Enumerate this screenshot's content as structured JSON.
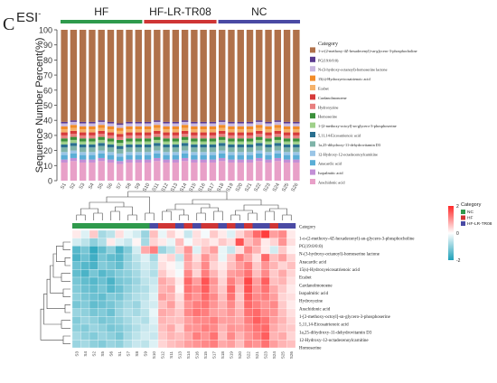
{
  "panel": {
    "letter": "C",
    "mode": "ESI",
    "mode_sup": "-"
  },
  "chart_data": [
    {
      "type": "bar",
      "stacked": true,
      "ylabel": "Sequence Number Percent(%)",
      "ylim": [
        0,
        100
      ],
      "yticks": [
        0,
        10,
        20,
        30,
        40,
        50,
        60,
        70,
        80,
        90,
        100
      ],
      "groups": [
        {
          "name": "HF",
          "color": "#2f9a4c",
          "count": 9
        },
        {
          "name": "HF-LR-TR08",
          "color": "#cf3535",
          "count": 8
        },
        {
          "name": "NC",
          "color": "#4a4aa4",
          "count": 9
        }
      ],
      "categories": [
        "S1",
        "S2",
        "S3",
        "S4",
        "S5",
        "S6",
        "S7",
        "S8",
        "S9",
        "S10",
        "S11",
        "S12",
        "S13",
        "S14",
        "S15",
        "S16",
        "S17",
        "S18",
        "S19",
        "S20",
        "S21",
        "S22",
        "S23",
        "S24",
        "S25",
        "S26"
      ],
      "legend_title": "Category",
      "series": [
        {
          "name": "Arachidonic acid",
          "color": "#e8a0c8",
          "values": [
            12,
            13,
            12,
            12,
            13,
            12,
            11,
            12,
            12,
            12,
            13,
            12,
            12,
            13,
            12,
            12,
            12,
            13,
            12,
            12,
            12,
            13,
            12,
            13,
            12,
            12
          ]
        },
        {
          "name": "Isopalmitic acid",
          "color": "#c38fd6",
          "values": [
            2,
            2,
            2,
            2,
            2,
            2,
            2,
            2,
            2,
            2,
            2,
            2,
            2,
            2,
            2,
            2,
            2,
            2,
            2,
            2,
            2,
            2,
            2,
            2,
            2,
            2
          ]
        },
        {
          "name": "Anacardic acid",
          "color": "#5aaed6",
          "values": [
            3,
            3,
            3,
            3,
            3,
            3,
            3,
            3,
            3,
            3,
            3,
            3,
            3,
            3,
            3,
            3,
            3,
            3,
            3,
            3,
            3,
            3,
            3,
            3,
            3,
            3
          ]
        },
        {
          "name": "12-Hydroxy-12-octadecenoylcarnitine",
          "color": "#9ac5e6",
          "values": [
            2,
            2,
            2,
            2,
            2,
            2,
            2,
            2,
            2,
            2,
            2,
            2,
            2,
            2,
            2,
            2,
            2,
            2,
            2,
            2,
            2,
            2,
            2,
            2,
            2,
            2
          ]
        },
        {
          "name": "1a,25-dihydroxy-11-dehydrovitamin D3",
          "color": "#7fb3a8",
          "values": [
            3,
            3,
            3,
            3,
            3,
            3,
            3,
            3,
            3,
            3,
            3,
            3,
            3,
            3,
            3,
            3,
            3,
            3,
            3,
            3,
            3,
            3,
            3,
            3,
            3,
            3
          ]
        },
        {
          "name": "5,11,14-Eicosatrienoic acid",
          "color": "#2a6f8f",
          "values": [
            2,
            2,
            2,
            2,
            2,
            2,
            2,
            2,
            2,
            2,
            2,
            2,
            2,
            2,
            2,
            2,
            2,
            2,
            2,
            2,
            2,
            2,
            2,
            2,
            2,
            2
          ]
        },
        {
          "name": "1-[2-methoxy-octoyl]-sn-glycero-3-phosphoserine",
          "color": "#9fd08a",
          "values": [
            2,
            2,
            2,
            2,
            2,
            2,
            2,
            2,
            2,
            2,
            2,
            2,
            2,
            2,
            2,
            2,
            2,
            2,
            2,
            2,
            2,
            2,
            2,
            2,
            2,
            2
          ]
        },
        {
          "name": "Homoserine",
          "color": "#3a8f3a",
          "values": [
            2,
            2,
            2,
            2,
            2,
            2,
            2,
            2,
            2,
            2,
            2,
            2,
            2,
            2,
            2,
            2,
            2,
            2,
            2,
            2,
            2,
            2,
            2,
            2,
            2,
            2
          ]
        },
        {
          "name": "Hydroxyzine",
          "color": "#e87f7f",
          "values": [
            2,
            2,
            2,
            2,
            2,
            2,
            2,
            2,
            2,
            2,
            2,
            2,
            2,
            2,
            2,
            2,
            2,
            2,
            2,
            2,
            2,
            2,
            2,
            2,
            2,
            2
          ]
        },
        {
          "name": "Cardanolmonoene",
          "color": "#d63a3a",
          "values": [
            2,
            2,
            2,
            2,
            2,
            2,
            2,
            2,
            2,
            2,
            2,
            2,
            2,
            2,
            2,
            2,
            2,
            2,
            2,
            2,
            2,
            2,
            2,
            2,
            2,
            2
          ]
        },
        {
          "name": "Ecabet",
          "color": "#f5b26b",
          "values": [
            2,
            2,
            2,
            2,
            2,
            2,
            2,
            2,
            2,
            2,
            2,
            2,
            2,
            2,
            2,
            2,
            2,
            2,
            2,
            2,
            2,
            2,
            2,
            2,
            2,
            2
          ]
        },
        {
          "name": "15(s)-Hydroxyeicosatrienoic acid",
          "color": "#f28c28",
          "values": [
            2,
            2,
            2,
            2,
            2,
            2,
            2,
            2,
            2,
            2,
            2,
            2,
            2,
            2,
            2,
            2,
            2,
            2,
            2,
            2,
            2,
            2,
            2,
            2,
            2,
            2
          ]
        },
        {
          "name": "N-(3-hydroxy-octanoyl)-homoserine lactone",
          "color": "#c9b8e0",
          "values": [
            2,
            2,
            2,
            2,
            2,
            2,
            2,
            2,
            2,
            2,
            2,
            2,
            2,
            2,
            2,
            2,
            2,
            2,
            2,
            2,
            2,
            2,
            2,
            2,
            2,
            2
          ]
        },
        {
          "name": "PC(19:0/0:0)",
          "color": "#5a3a8f",
          "values": [
            1,
            1,
            1,
            1,
            1,
            1,
            1,
            1,
            1,
            1,
            1,
            1,
            1,
            1,
            1,
            1,
            1,
            1,
            1,
            1,
            1,
            1,
            1,
            1,
            1,
            1
          ]
        },
        {
          "name": "1-o-(2-methoxy-4Z-hexadecenyl)-sn-glycero-3-phosphocholine",
          "color": "#b0714a",
          "values": [
            61,
            60,
            61,
            61,
            60,
            61,
            62,
            61,
            61,
            61,
            60,
            61,
            61,
            60,
            61,
            61,
            61,
            60,
            61,
            61,
            61,
            60,
            61,
            60,
            61,
            61
          ]
        }
      ]
    },
    {
      "type": "heatmap",
      "row_labels": [
        "Category",
        "1-o-(2-methoxy-4Z-hexadecenyl)-sn-glycero-3-phosphocholine",
        "PC(19:0/0:0)",
        "N-(3-hydroxy-octanoyl)-homoserine lactone",
        "Anacardic acid",
        "15(s)-Hydroxyeicosatrienoic acid",
        "Ecabet",
        "Cardanolmonoene",
        "Isopalmitic acid",
        "Hydroxyzine",
        "Arachidonic acid",
        "1-[2-methoxy-octoyl]-sn-glycero-3-phosphoserine",
        "5,11,14-Eicosatrienoic acid",
        "1a,25-dihydroxy-11-dehydrovitamin D3",
        "12-Hydroxy-12-octadecenoylcarnitine",
        "Homoserine"
      ],
      "column_labels": [
        "S3",
        "S4",
        "S2",
        "S5",
        "S6",
        "S1",
        "S7",
        "S8",
        "S9",
        "S10",
        "S12",
        "S11",
        "S13",
        "S14",
        "S16",
        "S15",
        "S17",
        "S18",
        "S19",
        "S20",
        "S22",
        "S21",
        "S23",
        "S24",
        "S25",
        "S26"
      ],
      "column_groups": [
        "HF",
        "HF",
        "HF",
        "HF",
        "HF",
        "HF",
        "HF",
        "HF",
        "HF",
        "NC",
        "HF-LR-TR08",
        "HF-LR-TR08",
        "NC",
        "HF-LR-TR08",
        "NC",
        "HF-LR-TR08",
        "HF-LR-TR08",
        "NC",
        "HF-LR-TR08",
        "NC",
        "HF-LR-TR08",
        "NC",
        "NC",
        "HF-LR-TR08",
        "NC",
        "NC"
      ],
      "legend": {
        "scale_title": "",
        "scale_ticks": [
          "2",
          "0",
          "-2"
        ],
        "category_title": "Category",
        "category_items": [
          {
            "name": "NC",
            "color": "#2f9a4c"
          },
          {
            "name": "HF",
            "color": "#cf3535"
          },
          {
            "name": "HF-LR-TR08",
            "color": "#4a4aa4"
          }
        ]
      },
      "values": [
        [
          0.2,
          -0.3,
          0.5,
          -0.8,
          -0.6,
          0.3,
          -0.2,
          -0.4,
          -0.9,
          0.6,
          -0.2,
          0.4,
          0.1,
          -0.5,
          0.3,
          -0.1,
          0.5,
          0.2,
          -0.3,
          0.4,
          0.8,
          1.4,
          1.8,
          0.9,
          1.1,
          0.2
        ],
        [
          -0.4,
          -0.6,
          -1.0,
          -0.7,
          0.2,
          -0.3,
          -0.5,
          0.1,
          -0.8,
          0.4,
          0.2,
          -0.2,
          0.6,
          -0.1,
          0.3,
          0.4,
          0.2,
          0.5,
          0.3,
          1.6,
          0.6,
          0.9,
          0.2,
          0.4,
          1.0,
          0.3
        ],
        [
          -1.5,
          -1.2,
          -1.8,
          -1.4,
          -1.0,
          -1.6,
          -1.1,
          -0.4,
          0.8,
          1.2,
          -0.9,
          -0.6,
          0.4,
          1.0,
          -0.3,
          0.6,
          0.9,
          -0.2,
          -0.5,
          0.3,
          1.1,
          0.7,
          0.2,
          -0.4,
          0.5,
          0.1
        ],
        [
          -1.6,
          -1.3,
          -1.7,
          -1.2,
          -1.4,
          -1.5,
          -1.0,
          -0.6,
          -0.3,
          -0.8,
          0.2,
          0.4,
          -0.5,
          0.9,
          0.3,
          1.0,
          0.6,
          -0.2,
          0.5,
          1.2,
          0.8,
          0.3,
          1.4,
          0.6,
          0.9,
          0.4
        ],
        [
          -1.3,
          -1.5,
          -1.6,
          -1.1,
          -1.2,
          -1.4,
          -0.9,
          -0.7,
          -0.4,
          -0.6,
          0.3,
          0.1,
          -0.2,
          0.8,
          0.5,
          1.1,
          0.4,
          0.2,
          0.6,
          0.9,
          1.2,
          0.5,
          1.0,
          0.7,
          0.4,
          0.6
        ],
        [
          -1.4,
          -1.6,
          -1.2,
          -1.5,
          -1.3,
          -1.1,
          -1.0,
          -0.8,
          -0.5,
          -0.7,
          0.5,
          0.2,
          -0.1,
          1.1,
          0.4,
          1.2,
          0.7,
          0.3,
          0.9,
          1.0,
          1.3,
          0.6,
          1.1,
          0.5,
          0.8,
          0.4
        ],
        [
          -1.2,
          -1.4,
          -1.5,
          -1.3,
          -1.6,
          -1.2,
          -1.1,
          -0.9,
          -0.6,
          -0.5,
          0.8,
          0.6,
          0.2,
          1.4,
          0.9,
          1.6,
          1.0,
          0.4,
          1.2,
          0.8,
          1.7,
          0.9,
          1.5,
          0.6,
          0.7,
          0.3
        ],
        [
          -1.1,
          -1.3,
          -1.4,
          -1.2,
          -1.5,
          -1.3,
          -1.0,
          -0.8,
          -0.7,
          -0.4,
          0.7,
          0.8,
          0.1,
          1.3,
          1.1,
          1.5,
          0.9,
          0.5,
          1.4,
          0.6,
          1.6,
          1.0,
          1.3,
          0.8,
          0.5,
          0.2
        ],
        [
          -1.0,
          -1.2,
          -1.3,
          -1.4,
          -1.1,
          -1.2,
          -0.9,
          -0.7,
          -0.6,
          -0.3,
          0.9,
          0.7,
          0.3,
          1.2,
          1.0,
          1.4,
          1.1,
          0.6,
          1.3,
          0.5,
          1.5,
          1.1,
          1.2,
          0.9,
          0.4,
          0.3
        ],
        [
          -1.2,
          -1.1,
          -1.4,
          -1.3,
          -1.2,
          -1.0,
          -0.8,
          -0.9,
          -0.5,
          -0.4,
          0.6,
          0.9,
          0.4,
          1.0,
          1.2,
          1.3,
          1.0,
          0.7,
          1.1,
          0.6,
          1.4,
          1.2,
          1.0,
          1.1,
          0.5,
          0.2
        ],
        [
          -0.9,
          -1.0,
          -1.2,
          -1.1,
          -1.3,
          -0.9,
          -0.7,
          -0.8,
          -0.6,
          -0.2,
          0.8,
          0.7,
          0.5,
          1.1,
          1.3,
          1.2,
          0.9,
          0.8,
          1.0,
          0.7,
          1.3,
          1.4,
          1.1,
          1.0,
          0.6,
          0.3
        ],
        [
          -1.1,
          -0.9,
          -1.0,
          -1.2,
          -1.1,
          -1.0,
          -0.8,
          -0.6,
          -0.7,
          -0.3,
          0.7,
          0.6,
          0.6,
          0.9,
          1.1,
          1.1,
          1.2,
          0.9,
          0.9,
          0.8,
          1.2,
          1.5,
          1.3,
          0.9,
          0.7,
          0.4
        ],
        [
          -1.0,
          -1.1,
          -0.9,
          -1.0,
          -1.2,
          -1.1,
          -0.9,
          -0.7,
          -0.5,
          -0.4,
          0.6,
          0.8,
          0.4,
          1.0,
          1.0,
          1.2,
          1.1,
          0.7,
          1.0,
          0.9,
          1.1,
          1.3,
          1.4,
          0.8,
          0.6,
          0.5
        ],
        [
          -0.8,
          -1.0,
          -1.1,
          -0.9,
          -1.0,
          -1.2,
          -0.8,
          -0.6,
          -0.4,
          -0.5,
          0.5,
          0.7,
          0.6,
          0.8,
          1.2,
          1.0,
          1.3,
          0.6,
          1.1,
          0.7,
          1.0,
          1.2,
          1.5,
          0.7,
          0.8,
          0.4
        ],
        [
          -0.9,
          -0.8,
          -1.0,
          -1.1,
          -0.9,
          -1.0,
          -0.7,
          -0.5,
          -0.6,
          -0.3,
          0.4,
          0.6,
          0.7,
          0.9,
          1.0,
          1.1,
          1.2,
          0.8,
          0.9,
          0.6,
          1.1,
          1.0,
          1.3,
          0.9,
          0.7,
          0.6
        ]
      ]
    }
  ]
}
